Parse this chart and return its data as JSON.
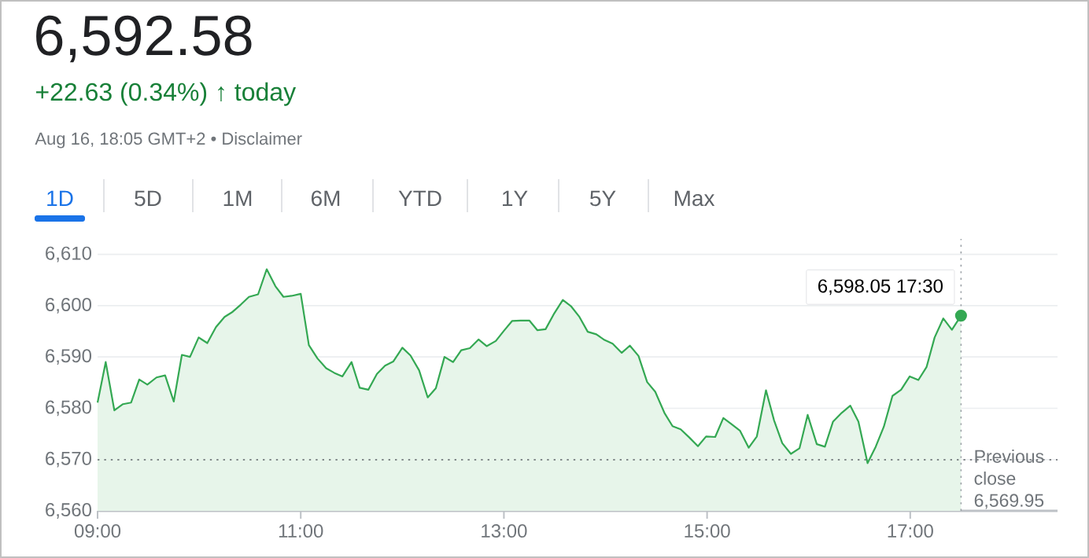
{
  "chart_data": {
    "type": "area",
    "title": "6,592.58",
    "subtitle": "+22.63 (0.34%) ↑ today",
    "annotations": [
      "Aug 16, 18:05 GMT+2 • Disclaimer",
      "1D",
      "5D",
      "1M",
      "6M",
      "YTD",
      "1Y",
      "5Y",
      "Max",
      {
        "text": "6,598.05 17:30",
        "x": 17.5,
        "y": 6598.05
      }
    ],
    "series": [
      {
        "color": "#34a853",
        "x": [
          9.0,
          9.08,
          9.165,
          9.25,
          9.33,
          9.41,
          9.49,
          9.58,
          9.665,
          9.75,
          9.83,
          9.91,
          9.995,
          10.08,
          10.165,
          10.25,
          10.33,
          10.41,
          10.49,
          10.58,
          10.665,
          10.75,
          10.83,
          10.91,
          11.0,
          11.08,
          11.165,
          11.25,
          11.33,
          11.41,
          11.5,
          11.58,
          11.665,
          11.75,
          11.83,
          11.91,
          12.0,
          12.08,
          12.165,
          12.25,
          12.33,
          12.415,
          12.5,
          12.58,
          12.665,
          12.75,
          12.83,
          12.92,
          13.0,
          13.08,
          13.165,
          13.25,
          13.33,
          13.41,
          13.49,
          13.58,
          13.66,
          13.74,
          13.825,
          13.91,
          13.99,
          14.07,
          14.16,
          14.24,
          14.325,
          14.41,
          14.49,
          14.58,
          14.66,
          14.74,
          14.825,
          14.91,
          14.99,
          15.08,
          15.16,
          15.24,
          15.325,
          15.41,
          15.49,
          15.58,
          15.66,
          15.74,
          15.825,
          15.91,
          15.99,
          16.08,
          16.16,
          16.24,
          16.325,
          16.41,
          16.49,
          16.58,
          16.66,
          16.74,
          16.825,
          16.91,
          16.995,
          17.08,
          17.16,
          17.24,
          17.325,
          17.41,
          17.5
        ],
        "values": [
          6581.1,
          6589.0,
          6579.6,
          6580.8,
          6581.1,
          6585.6,
          6584.6,
          6586.0,
          6586.4,
          6581.3,
          6590.4,
          6590.0,
          6593.8,
          6592.7,
          6595.8,
          6597.8,
          6598.8,
          6600.2,
          6601.7,
          6602.2,
          6607.1,
          6603.8,
          6601.7,
          6601.9,
          6602.3,
          6592.3,
          6589.7,
          6587.8,
          6586.9,
          6586.2,
          6589.0,
          6584.0,
          6583.6,
          6586.7,
          6588.3,
          6589.1,
          6591.8,
          6590.3,
          6587.4,
          6582.1,
          6583.9,
          6590.0,
          6589.0,
          6591.3,
          6591.7,
          6593.4,
          6592.1,
          6593.1,
          6595.1,
          6597.0,
          6597.1,
          6597.1,
          6595.2,
          6595.4,
          6598.3,
          6601.1,
          6599.9,
          6597.9,
          6594.9,
          6594.4,
          6593.3,
          6592.6,
          6590.8,
          6592.2,
          6590.2,
          6585.1,
          6583.2,
          6579.1,
          6576.5,
          6575.9,
          6574.3,
          6572.6,
          6574.5,
          6574.4,
          6578.1,
          6576.9,
          6575.6,
          6572.3,
          6574.5,
          6583.5,
          6577.6,
          6573.2,
          6571.1,
          6572.2,
          6578.7,
          6573.0,
          6572.5,
          6577.4,
          6579.1,
          6580.5,
          6577.4,
          6569.3,
          6572.5,
          6576.4,
          6582.4,
          6583.6,
          6586.2,
          6585.5,
          6588.0,
          6593.8,
          6597.5,
          6595.3,
          6598.05
        ]
      },
      {
        "type": "scatter",
        "color": "#34a853",
        "marker": "circle",
        "x": [
          17.5
        ],
        "values": [
          6598.05
        ]
      }
    ],
    "xlim": [
      9,
      18.45
    ],
    "ylim": [
      6560,
      6613
    ],
    "xticks": [
      {
        "value": 9,
        "label": "09:00"
      },
      {
        "value": 11,
        "label": "11:00"
      },
      {
        "value": 13,
        "label": "13:00"
      },
      {
        "value": 15,
        "label": "15:00"
      },
      {
        "value": 17,
        "label": "17:00"
      }
    ],
    "yticks": [
      {
        "value": 6560,
        "label": "6,560"
      },
      {
        "value": 6570,
        "label": "6,570"
      },
      {
        "value": 6580,
        "label": "6,580"
      },
      {
        "value": 6590,
        "label": "6,590"
      },
      {
        "value": 6600,
        "label": "6,600"
      },
      {
        "value": 6610,
        "label": "6,610"
      }
    ],
    "grid": "y",
    "ref_lines": [
      {
        "axis": "y",
        "value": 6569.95,
        "label": "Previous close 6,569.95",
        "line_style": "dotted",
        "color": "#5f6368"
      },
      {
        "axis": "x",
        "value": 17.5,
        "line_style": "dotted",
        "color": "#9aa0a6"
      }
    ]
  }
}
